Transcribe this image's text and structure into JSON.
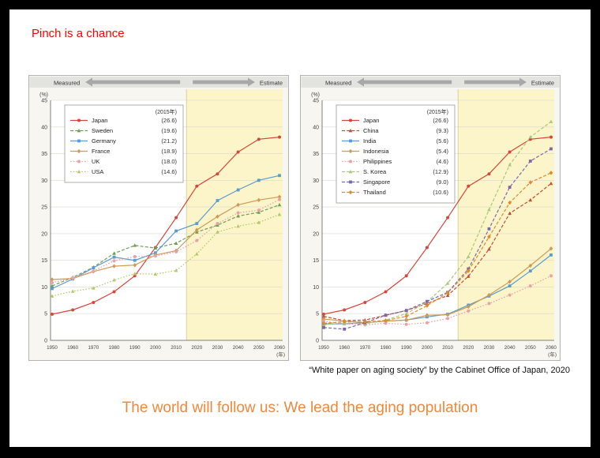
{
  "slide": {
    "header": "Pinch is a chance",
    "header_color": "#ff0000",
    "caption": "“White paper on aging society” by the Cabinet Office of Japan, 2020",
    "title": "The world will follow us: We lead the aging population",
    "title_color": "#f0883c"
  },
  "chart_data": [
    {
      "type": "line",
      "name": "aging-rate-developed-countries",
      "measured_label": "Measured",
      "estimate_label": "Estimate",
      "legend_title": "(2015年)",
      "ylabel": "(%)",
      "x_suffix": "(年)",
      "ylim": [
        0,
        45
      ],
      "ytick_step": 5,
      "estimate_start_year": 2015,
      "estimate_bg": "#fbf5c9",
      "years": [
        1950,
        1960,
        1970,
        1980,
        1990,
        2000,
        2010,
        2020,
        2030,
        2040,
        2050,
        2060
      ],
      "series": [
        {
          "name": "Japan",
          "value_2015": "26.6",
          "color": "#d9453a",
          "marker": "circle",
          "dash": "solid",
          "values": [
            4.9,
            5.7,
            7.1,
            9.1,
            12.1,
            17.4,
            23.0,
            28.9,
            31.2,
            35.3,
            37.7,
            38.1
          ]
        },
        {
          "name": "Sweden",
          "value_2015": "19.6",
          "color": "#6f9e55",
          "marker": "triangle",
          "dash": "dashed",
          "values": [
            10.2,
            11.8,
            13.7,
            16.3,
            17.8,
            17.3,
            18.2,
            20.3,
            21.6,
            23.3,
            24.0,
            25.4
          ]
        },
        {
          "name": "Germany",
          "value_2015": "21.2",
          "color": "#5b9bd0",
          "marker": "square",
          "dash": "solid",
          "values": [
            9.7,
            11.5,
            13.6,
            15.6,
            15.0,
            16.4,
            20.5,
            21.9,
            26.2,
            28.2,
            30.0,
            30.9
          ]
        },
        {
          "name": "France",
          "value_2015": "18.9",
          "color": "#cf9a55",
          "marker": "diamond",
          "dash": "solid",
          "values": [
            11.4,
            11.6,
            12.9,
            13.9,
            14.1,
            16.0,
            16.8,
            20.7,
            23.2,
            25.4,
            26.3,
            26.9
          ]
        },
        {
          "name": "UK",
          "value_2015": "18.0",
          "color": "#e9a2a8",
          "marker": "circle",
          "dash": "dotted",
          "values": [
            10.8,
            11.7,
            13.0,
            14.9,
            15.7,
            15.8,
            16.6,
            18.7,
            21.9,
            23.9,
            24.4,
            26.4
          ]
        },
        {
          "name": "USA",
          "value_2015": "14.6",
          "color": "#b6c86c",
          "marker": "triangle",
          "dash": "dotted",
          "values": [
            8.3,
            9.2,
            9.8,
            11.3,
            12.5,
            12.4,
            13.1,
            16.2,
            20.3,
            21.4,
            22.1,
            23.6
          ]
        }
      ]
    },
    {
      "type": "line",
      "name": "aging-rate-asian-countries",
      "measured_label": "Measured",
      "estimate_label": "Estimate",
      "legend_title": "(2015年)",
      "ylabel": "(%)",
      "x_suffix": "(年)",
      "ylim": [
        0,
        45
      ],
      "ytick_step": 5,
      "estimate_start_year": 2015,
      "estimate_bg": "#fbf5c9",
      "years": [
        1950,
        1960,
        1970,
        1980,
        1990,
        2000,
        2010,
        2020,
        2030,
        2040,
        2050,
        2060
      ],
      "series": [
        {
          "name": "Japan",
          "value_2015": "26.6",
          "color": "#d9453a",
          "marker": "circle",
          "dash": "solid",
          "values": [
            4.9,
            5.7,
            7.1,
            9.1,
            12.1,
            17.4,
            23.0,
            28.9,
            31.2,
            35.3,
            37.7,
            38.1
          ]
        },
        {
          "name": "China",
          "value_2015": "9.3",
          "color": "#c44f38",
          "marker": "triangle",
          "dash": "dashed",
          "values": [
            4.5,
            3.7,
            3.8,
            4.7,
            5.6,
            6.9,
            8.4,
            12.0,
            17.1,
            23.8,
            26.3,
            29.4
          ]
        },
        {
          "name": "India",
          "value_2015": "5.6",
          "color": "#5b9bd0",
          "marker": "square",
          "dash": "solid",
          "values": [
            3.1,
            3.1,
            3.3,
            3.6,
            3.8,
            4.4,
            4.9,
            6.6,
            8.3,
            10.2,
            13.0,
            16.0
          ]
        },
        {
          "name": "Indonesia",
          "value_2015": "5.4",
          "color": "#cf9a55",
          "marker": "diamond",
          "dash": "solid",
          "values": [
            4.0,
            3.6,
            3.3,
            3.6,
            3.8,
            4.7,
            4.8,
            6.3,
            8.5,
            11.0,
            14.0,
            17.2
          ]
        },
        {
          "name": "Philippines",
          "value_2015": "4.6",
          "color": "#e9a2a8",
          "marker": "circle",
          "dash": "dotted",
          "values": [
            3.6,
            3.1,
            2.9,
            3.2,
            3.0,
            3.3,
            4.1,
            5.5,
            6.9,
            8.5,
            10.2,
            12.1
          ]
        },
        {
          "name": "S. Korea",
          "value_2015": "12.9",
          "color": "#a9c878",
          "marker": "triangle",
          "dash": "dashed",
          "values": [
            2.9,
            3.3,
            3.1,
            3.8,
            5.0,
            7.2,
            10.7,
            15.7,
            24.5,
            32.9,
            38.1,
            41.0
          ]
        },
        {
          "name": "Singapore",
          "value_2015": "9.0",
          "color": "#7b68a8",
          "marker": "square",
          "dash": "dashed",
          "values": [
            2.4,
            2.1,
            3.3,
            4.7,
            5.6,
            7.3,
            9.0,
            13.4,
            20.9,
            28.7,
            33.6,
            35.9
          ]
        },
        {
          "name": "Thailand",
          "value_2015": "10.6",
          "color": "#e08a28",
          "marker": "diamond",
          "dash": "dashed",
          "values": [
            3.2,
            3.5,
            3.5,
            3.7,
            4.5,
            6.5,
            8.9,
            13.0,
            19.4,
            25.8,
            29.6,
            31.4
          ]
        }
      ]
    }
  ]
}
